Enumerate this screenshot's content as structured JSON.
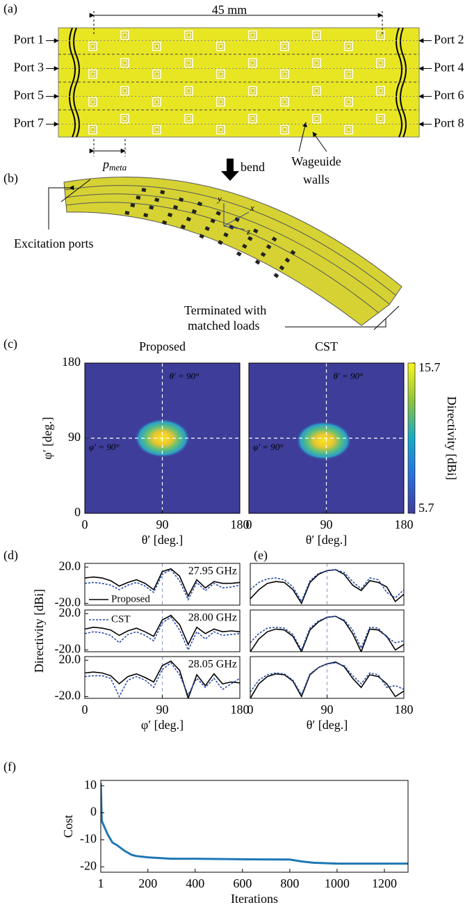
{
  "figure": {
    "panel_labels": [
      "(a)",
      "(b)",
      "(c)",
      "(d)",
      "(e)",
      "(f)"
    ],
    "dimension": "45 mm",
    "ports_left": [
      "Port 1",
      "Port 3",
      "Port 5",
      "Port 7"
    ],
    "ports_right": [
      "Port 2",
      "Port 4",
      "Port 6",
      "Port 8"
    ],
    "p_meta": {
      "base": "p",
      "sub": "meta"
    },
    "bend": "bend",
    "walls": [
      "Wageuide",
      "walls"
    ],
    "axes_letters": [
      "y",
      "x",
      "z"
    ],
    "excitation": "Excitation ports",
    "terminated": [
      "Terminated with",
      "matched loads"
    ]
  },
  "chart_data": [
    {
      "type": "heatmap",
      "title": "Proposed",
      "xlim": [
        0,
        180
      ],
      "ylim": [
        0,
        180
      ],
      "xticks": [
        0,
        90,
        180
      ],
      "yticks": [
        0,
        90,
        180
      ],
      "xlabel": "θ′ [deg.]",
      "ylabel": "φ′ [deg.]",
      "peak": [
        90,
        90
      ],
      "vline": 90,
      "hline": 90,
      "annotations": [
        "θ′ = 90°",
        "φ′ = 90°"
      ],
      "color": "#3e3d99"
    },
    {
      "type": "heatmap",
      "title": "CST",
      "xlim": [
        0,
        180
      ],
      "ylim": [
        0,
        180
      ],
      "xticks": [
        0,
        90,
        180
      ],
      "xlabel": "θ′ [deg.]",
      "peak": [
        87,
        87
      ],
      "vline": 90,
      "hline": 90,
      "annotations": [
        "θ′ = 90°",
        "φ′ = 90°"
      ],
      "color": "#3e3d99",
      "colorbar": {
        "lim": [
          5.7,
          15.7
        ],
        "ticks": [
          5.7,
          15.7
        ],
        "label": "Directivity [dBi]"
      }
    },
    {
      "type": "line",
      "annotation": "27.95 GHz",
      "xlim": [
        0,
        180
      ],
      "ylim": [
        -22,
        24
      ],
      "yticks": [
        {
          "value": 20,
          "label": "20.0"
        },
        {
          "value": -20,
          "label": "-20.0"
        }
      ],
      "vline": 90,
      "x": [
        0,
        10,
        20,
        30,
        40,
        50,
        60,
        70,
        80,
        90,
        100,
        110,
        120,
        130,
        140,
        150,
        160,
        170,
        180
      ],
      "series": [
        {
          "name": "Proposed",
          "color": "#000000",
          "values": [
            8,
            9,
            8,
            5,
            -1,
            3,
            6,
            2,
            -5,
            15,
            18,
            10,
            -12,
            6,
            -3,
            4,
            2,
            2,
            3
          ]
        },
        {
          "color": "#2b4fa8",
          "dash": true,
          "values": [
            2,
            3,
            2,
            0,
            -5,
            0,
            3,
            -1,
            -8,
            12,
            17,
            5,
            -16,
            3,
            -6,
            2,
            -3,
            -2,
            0
          ]
        }
      ]
    },
    {
      "type": "line",
      "annotation": "28.00 GHz",
      "ylabel": "Directivity [dBi]",
      "xlim": [
        0,
        180
      ],
      "ylim": [
        -22,
        24
      ],
      "yticks": [
        {
          "value": 20,
          "label": "20.0"
        },
        {
          "value": -20,
          "label": "-20.0"
        }
      ],
      "vline": 90,
      "x": [
        0,
        10,
        20,
        30,
        40,
        50,
        60,
        70,
        80,
        90,
        100,
        110,
        120,
        130,
        140,
        150,
        160,
        170,
        180
      ],
      "series": [
        {
          "color": "#000000",
          "values": [
            3,
            5,
            4,
            2,
            -4,
            1,
            4,
            0,
            -5,
            13,
            18,
            8,
            -14,
            5,
            -2,
            3,
            0,
            1,
            0
          ]
        },
        {
          "name": "CST",
          "color": "#2b4fa8",
          "dash": true,
          "values": [
            -2,
            0,
            -1,
            -4,
            -12,
            -3,
            0,
            -4,
            -10,
            10,
            16,
            2,
            -20,
            0,
            -8,
            0,
            -4,
            -3,
            -2
          ]
        }
      ]
    },
    {
      "type": "line",
      "annotation": "28.05 GHz",
      "xlabel": "φ′ [deg.]",
      "xlim": [
        0,
        180
      ],
      "ylim": [
        -22,
        24
      ],
      "xticks": [
        0,
        90,
        180
      ],
      "yticks": [
        {
          "value": 20,
          "label": "20.0"
        },
        {
          "value": -20,
          "label": "-20.0"
        }
      ],
      "vline": 90,
      "x": [
        0,
        10,
        20,
        30,
        40,
        50,
        60,
        70,
        80,
        90,
        100,
        110,
        120,
        130,
        140,
        150,
        160,
        170,
        180
      ],
      "series": [
        {
          "color": "#000000",
          "values": [
            6,
            7,
            6,
            3,
            -6,
            2,
            5,
            1,
            -4,
            14,
            19,
            9,
            -22,
            4,
            -8,
            5,
            -6,
            -4,
            -5
          ]
        },
        {
          "color": "#2b4fa8",
          "dash": true,
          "values": [
            2,
            3,
            3,
            0,
            -20,
            -2,
            2,
            -2,
            -10,
            10,
            17,
            4,
            -18,
            0,
            -10,
            0,
            -12,
            -6,
            0
          ]
        }
      ]
    },
    {
      "type": "line",
      "xlim": [
        0,
        180
      ],
      "ylim": [
        -22,
        24
      ],
      "vline": 90,
      "x": [
        0,
        10,
        20,
        30,
        40,
        50,
        60,
        70,
        80,
        90,
        100,
        110,
        120,
        130,
        140,
        150,
        160,
        170,
        180
      ],
      "series": [
        {
          "color": "#000000",
          "values": [
            -15,
            -5,
            2,
            4,
            3,
            -5,
            -20,
            3,
            12,
            16,
            17,
            12,
            0,
            -6,
            5,
            3,
            -2,
            -18,
            -10
          ]
        },
        {
          "color": "#2b4fa8",
          "dash": true,
          "values": [
            -5,
            3,
            7,
            8,
            6,
            -2,
            -18,
            5,
            13,
            16,
            17,
            14,
            4,
            -4,
            8,
            6,
            -8,
            -14,
            -5
          ]
        }
      ]
    },
    {
      "type": "line",
      "xlim": [
        0,
        180
      ],
      "ylim": [
        -22,
        24
      ],
      "vline": 90,
      "x": [
        0,
        10,
        20,
        30,
        40,
        50,
        60,
        70,
        80,
        90,
        100,
        110,
        120,
        130,
        140,
        150,
        160,
        170,
        180
      ],
      "series": [
        {
          "color": "#000000",
          "values": [
            -22,
            -8,
            0,
            3,
            2,
            -5,
            -22,
            2,
            11,
            16,
            17,
            12,
            -2,
            -22,
            3,
            2,
            -5,
            -20,
            -14
          ]
        },
        {
          "color": "#2b4fa8",
          "dash": true,
          "values": [
            -12,
            -2,
            4,
            5,
            4,
            -3,
            -20,
            4,
            12,
            16,
            17,
            13,
            2,
            -18,
            5,
            4,
            -6,
            -12,
            -10
          ]
        }
      ]
    },
    {
      "type": "line",
      "xlabel": "θ′ [deg.]",
      "xlim": [
        0,
        180
      ],
      "ylim": [
        -22,
        24
      ],
      "xticks": [
        0,
        90,
        180
      ],
      "vline": 90,
      "x": [
        0,
        10,
        20,
        30,
        40,
        50,
        60,
        70,
        80,
        90,
        100,
        110,
        120,
        130,
        140,
        150,
        160,
        170,
        180
      ],
      "series": [
        {
          "color": "#000000",
          "values": [
            -22,
            -6,
            2,
            5,
            4,
            -3,
            -20,
            4,
            12,
            16,
            18,
            13,
            0,
            -10,
            4,
            2,
            -6,
            -20,
            -14
          ]
        },
        {
          "color": "#2b4fa8",
          "dash": true,
          "values": [
            -15,
            -2,
            4,
            6,
            5,
            -2,
            -18,
            5,
            12,
            16,
            17,
            14,
            3,
            -6,
            6,
            4,
            -10,
            -8,
            -12
          ]
        }
      ]
    },
    {
      "type": "line",
      "xlabel": "Iterations",
      "ylabel": "Cost",
      "xlim": [
        1,
        1300
      ],
      "ylim": [
        -22,
        12
      ],
      "xticks": [
        1,
        200,
        400,
        600,
        800,
        1000,
        1200
      ],
      "yticks": [
        -20,
        -10,
        0,
        10
      ],
      "thick": true,
      "x": [
        1,
        5,
        10,
        20,
        30,
        50,
        70,
        100,
        130,
        150,
        200,
        300,
        400,
        600,
        800,
        850,
        900,
        1000,
        1100,
        1200,
        1300
      ],
      "series": [
        {
          "color": "#1f77b4",
          "values": [
            11,
            -3,
            -4,
            -6,
            -8,
            -11,
            -12,
            -14,
            -15.5,
            -16,
            -16.5,
            -17,
            -17,
            -17.2,
            -17.3,
            -18,
            -18.5,
            -18.8,
            -18.8,
            -18.8,
            -18.8
          ]
        }
      ]
    }
  ]
}
